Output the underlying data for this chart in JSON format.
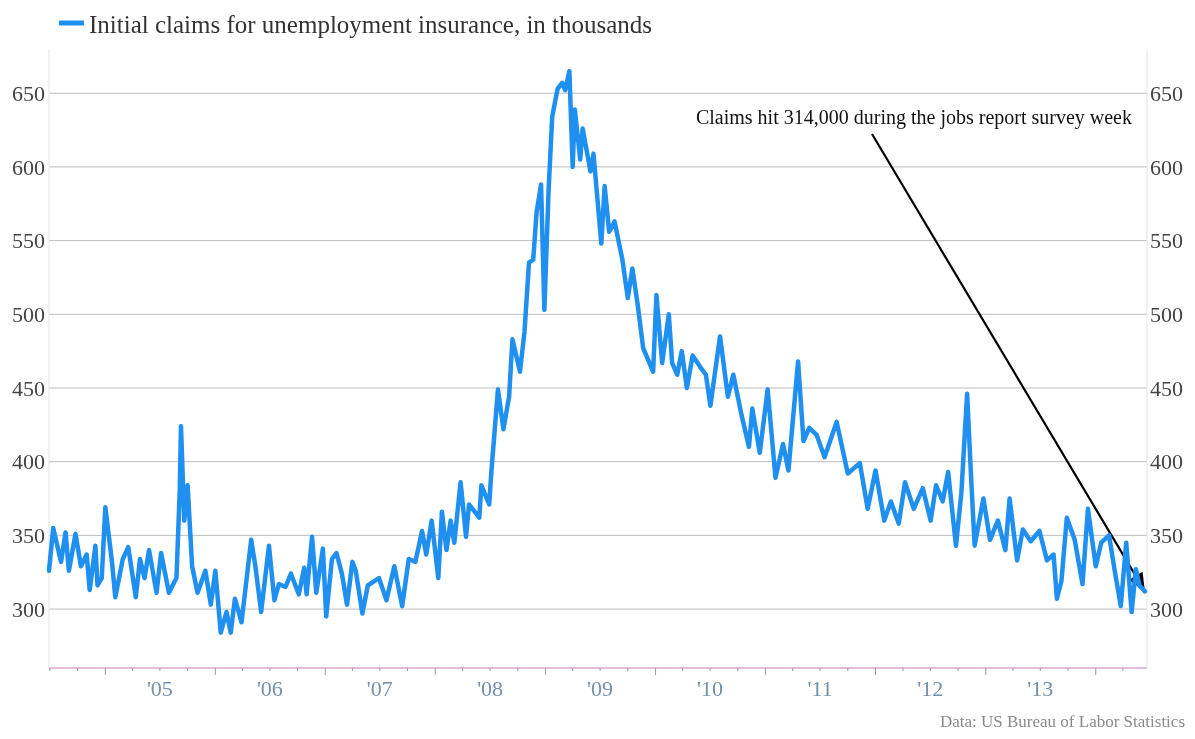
{
  "chart_data": {
    "type": "line",
    "x": [
      "2004-06-28",
      "2004-07-12",
      "2004-08-07",
      "2004-08-22",
      "2004-09-02",
      "2004-09-24",
      "2004-10-12",
      "2004-10-31",
      "2004-11-10",
      "2004-11-29",
      "2004-12-06",
      "2004-12-20",
      "2005-01-01",
      "2005-01-23",
      "2005-02-03",
      "2005-02-28",
      "2005-03-18",
      "2005-04-12",
      "2005-04-26",
      "2005-05-11",
      "2005-05-26",
      "2005-06-20",
      "2005-07-05",
      "2005-07-31",
      "2005-08-25",
      "2005-09-05",
      "2005-09-09",
      "2005-09-20",
      "2005-10-01",
      "2005-10-16",
      "2005-11-03",
      "2005-11-29",
      "2005-12-17",
      "2006-01-01",
      "2006-01-19",
      "2006-02-07",
      "2006-02-21",
      "2006-03-07",
      "2006-03-29",
      "2006-04-30",
      "2006-05-14",
      "2006-06-02",
      "2006-06-28",
      "2006-07-16",
      "2006-07-31",
      "2006-08-22",
      "2006-09-09",
      "2006-10-05",
      "2006-10-23",
      "2006-10-31",
      "2006-11-18",
      "2006-12-02",
      "2006-12-24",
      "2007-01-04",
      "2007-01-23",
      "2007-02-07",
      "2007-02-25",
      "2007-03-14",
      "2007-04-01",
      "2007-04-12",
      "2007-05-04",
      "2007-05-22",
      "2007-06-28",
      "2007-07-23",
      "2007-08-18",
      "2007-09-13",
      "2007-10-05",
      "2007-10-27",
      "2007-11-18",
      "2007-12-02",
      "2007-12-20",
      "2008-01-11",
      "2008-01-23",
      "2008-02-07",
      "2008-02-21",
      "2008-03-04",
      "2008-03-25",
      "2008-04-12",
      "2008-04-22",
      "2008-05-26",
      "2008-06-02",
      "2008-06-28",
      "2008-07-05",
      "2008-07-27",
      "2008-08-14",
      "2008-09-02",
      "2008-09-13",
      "2008-10-08",
      "2008-10-23",
      "2008-11-07",
      "2008-11-21",
      "2008-12-02",
      "2008-12-17",
      "2008-12-28",
      "2009-01-11",
      "2009-01-23",
      "2009-02-10",
      "2009-02-25",
      "2009-03-07",
      "2009-03-21",
      "2009-04-01",
      "2009-04-08",
      "2009-04-26",
      "2009-05-04",
      "2009-05-30",
      "2009-06-09",
      "2009-07-05",
      "2009-07-16",
      "2009-07-31",
      "2009-08-18",
      "2009-09-13",
      "2009-10-01",
      "2009-10-16",
      "2009-11-03",
      "2009-11-21",
      "2009-12-24",
      "2010-01-04",
      "2010-01-23",
      "2010-02-14",
      "2010-02-25",
      "2010-03-14",
      "2010-03-29",
      "2010-04-15",
      "2010-05-04",
      "2010-05-30",
      "2010-06-17",
      "2010-07-02",
      "2010-08-03",
      "2010-08-29",
      "2010-09-16",
      "2010-10-12",
      "2010-11-07",
      "2010-11-18",
      "2010-12-13",
      "2011-01-08",
      "2011-02-03",
      "2011-02-28",
      "2011-03-18",
      "2011-04-19",
      "2011-05-07",
      "2011-05-26",
      "2011-06-20",
      "2011-07-16",
      "2011-08-25",
      "2011-10-01",
      "2011-11-10",
      "2011-12-06",
      "2012-01-01",
      "2012-01-30",
      "2012-02-21",
      "2012-03-18",
      "2012-04-08",
      "2012-05-07",
      "2012-06-06",
      "2012-07-02",
      "2012-07-20",
      "2012-08-11",
      "2012-08-29",
      "2012-09-24",
      "2012-10-12",
      "2012-10-31",
      "2012-11-14",
      "2012-11-25",
      "2012-12-24",
      "2013-01-15",
      "2013-02-10",
      "2013-03-07",
      "2013-03-21",
      "2013-04-15",
      "2013-05-04",
      "2013-05-30",
      "2013-06-28",
      "2013-07-23",
      "2013-08-14",
      "2013-08-25",
      "2013-09-09",
      "2013-09-27",
      "2013-10-23",
      "2013-11-18",
      "2013-12-06",
      "2014-01-01",
      "2014-01-19",
      "2014-02-14",
      "2014-03-04",
      "2014-03-25",
      "2014-04-12",
      "2014-04-30",
      "2014-05-14",
      "2014-05-26",
      "2014-06-13"
    ],
    "series": [
      {
        "name": "Initial claims for unemployment insurance, in thousands",
        "color": "#1f8ff0",
        "values": [
          326,
          355,
          332,
          352,
          326,
          351,
          329,
          337,
          313,
          343,
          316,
          321,
          369,
          332,
          308,
          334,
          342,
          308,
          334,
          321,
          340,
          311,
          338,
          311,
          321,
          381,
          424,
          360,
          384,
          329,
          311,
          326,
          303,
          326,
          284,
          298,
          284,
          307,
          291,
          347,
          329,
          298,
          343,
          306,
          317,
          315,
          324,
          310,
          328,
          310,
          349,
          311,
          341,
          295,
          334,
          338,
          324,
          303,
          332,
          326,
          297,
          316,
          321,
          306,
          329,
          302,
          334,
          332,
          353,
          337,
          360,
          321,
          366,
          340,
          360,
          345,
          386,
          349,
          371,
          362,
          384,
          371,
          393,
          449,
          422,
          444,
          483,
          461,
          488,
          535,
          537,
          569,
          588,
          503,
          584,
          634,
          653,
          657,
          652,
          665,
          600,
          639,
          605,
          626,
          597,
          609,
          548,
          587,
          556,
          563,
          537,
          511,
          531,
          506,
          477,
          461,
          513,
          467,
          500,
          467,
          459,
          475,
          450,
          472,
          464,
          459,
          438,
          485,
          444,
          459,
          433,
          410,
          436,
          406,
          449,
          389,
          412,
          394,
          468,
          414,
          423,
          418,
          403,
          427,
          392,
          399,
          368,
          394,
          360,
          373,
          358,
          386,
          368,
          382,
          360,
          384,
          373,
          393,
          343,
          379,
          446,
          386,
          343,
          375,
          347,
          360,
          340,
          375,
          333,
          354,
          346,
          353,
          333,
          337,
          307,
          319,
          362,
          347,
          317,
          368,
          329,
          345,
          350,
          327,
          302,
          345,
          298,
          327,
          316,
          312
        ]
      }
    ],
    "xlim": [
      "2004-06-28",
      "2014-06-20"
    ],
    "xticks": [
      {
        "value": "2004-07-01",
        "label": null
      },
      {
        "value": "2004-10-01",
        "label": null
      },
      {
        "value": "2005-01-01",
        "label": null
      },
      {
        "value": "2005-04-01",
        "label": null
      },
      {
        "value": "2005-07-01",
        "label": "'05"
      },
      {
        "value": "2005-10-01",
        "label": null
      },
      {
        "value": "2006-01-01",
        "label": null
      },
      {
        "value": "2006-04-01",
        "label": null
      },
      {
        "value": "2006-07-01",
        "label": "'06"
      },
      {
        "value": "2006-10-01",
        "label": null
      },
      {
        "value": "2007-01-01",
        "label": null
      },
      {
        "value": "2007-04-01",
        "label": null
      },
      {
        "value": "2007-07-01",
        "label": "'07"
      },
      {
        "value": "2007-10-01",
        "label": null
      },
      {
        "value": "2008-01-01",
        "label": null
      },
      {
        "value": "2008-04-01",
        "label": null
      },
      {
        "value": "2008-07-01",
        "label": "'08"
      },
      {
        "value": "2008-10-01",
        "label": null
      },
      {
        "value": "2009-01-01",
        "label": null
      },
      {
        "value": "2009-04-01",
        "label": null
      },
      {
        "value": "2009-07-01",
        "label": "'09"
      },
      {
        "value": "2009-10-01",
        "label": null
      },
      {
        "value": "2010-01-01",
        "label": null
      },
      {
        "value": "2010-04-01",
        "label": null
      },
      {
        "value": "2010-07-01",
        "label": "'10"
      },
      {
        "value": "2010-10-01",
        "label": null
      },
      {
        "value": "2011-01-01",
        "label": null
      },
      {
        "value": "2011-04-01",
        "label": null
      },
      {
        "value": "2011-07-01",
        "label": "'11"
      },
      {
        "value": "2011-10-01",
        "label": null
      },
      {
        "value": "2012-01-01",
        "label": null
      },
      {
        "value": "2012-04-01",
        "label": null
      },
      {
        "value": "2012-07-01",
        "label": "'12"
      },
      {
        "value": "2012-10-01",
        "label": null
      },
      {
        "value": "2013-01-01",
        "label": null
      },
      {
        "value": "2013-04-01",
        "label": null
      },
      {
        "value": "2013-07-01",
        "label": "'13"
      },
      {
        "value": "2013-10-01",
        "label": null
      },
      {
        "value": "2014-01-01",
        "label": null
      },
      {
        "value": "2014-04-01",
        "label": null
      }
    ],
    "ylim": [
      260,
      680
    ],
    "yticks": [
      300,
      350,
      400,
      450,
      500,
      550,
      600,
      650
    ],
    "y2lim": [
      260,
      680
    ],
    "y2ticks": [
      300,
      350,
      400,
      450,
      500,
      550,
      600,
      650
    ],
    "grid": "y",
    "legend": "top left",
    "annotations": [
      "Claims hit 314,000 during the jobs report survey week",
      "Data: US Bureau of Labor Statistics"
    ]
  }
}
